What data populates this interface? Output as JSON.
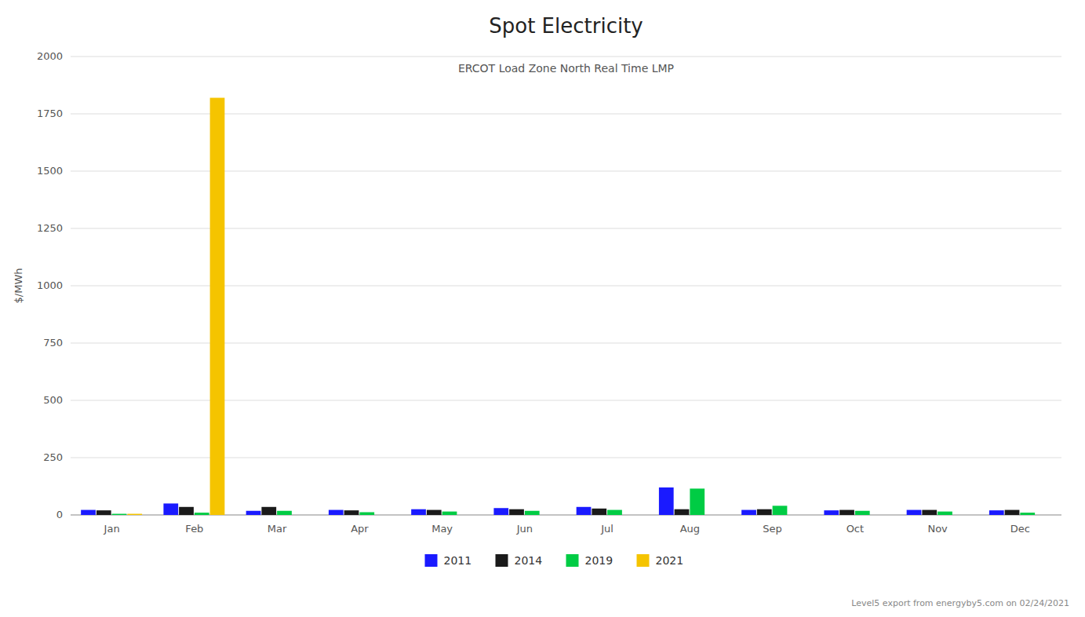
{
  "chart_data": {
    "type": "bar",
    "title": "Spot Electricity",
    "subtitle": "ERCOT Load Zone North Real Time LMP",
    "y_label": "$/MWh",
    "footnote": "Level5 export from energyby5.com on 02/24/2021",
    "categories": [
      "Jan",
      "Feb",
      "Mar",
      "Apr",
      "May",
      "Jun",
      "Jul",
      "Aug",
      "Sep",
      "Oct",
      "Nov",
      "Dec"
    ],
    "series": [
      {
        "name": "2011",
        "color": "#1a1aff",
        "values": [
          22,
          50,
          18,
          22,
          25,
          30,
          35,
          120,
          22,
          20,
          22,
          20
        ]
      },
      {
        "name": "2014",
        "color": "#1a1a1a",
        "values": [
          20,
          35,
          35,
          20,
          22,
          25,
          28,
          25,
          25,
          22,
          22,
          22
        ]
      },
      {
        "name": "2019",
        "color": "#00cc44",
        "values": [
          5,
          10,
          18,
          12,
          15,
          18,
          22,
          115,
          40,
          18,
          15,
          10
        ]
      },
      {
        "name": "2021",
        "color": "#f5c400",
        "values": [
          5,
          1820,
          0,
          0,
          0,
          0,
          0,
          0,
          0,
          0,
          0,
          0
        ]
      }
    ],
    "ylim": [
      0,
      2000
    ],
    "yticks": [
      0,
      250,
      500,
      750,
      1000,
      1250,
      1500,
      1750,
      2000
    ],
    "grid": true,
    "legend": "bottom"
  }
}
